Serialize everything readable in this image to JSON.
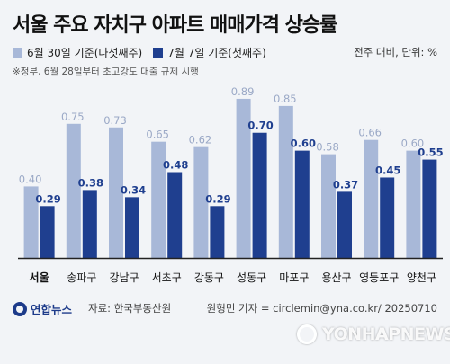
{
  "chart_data": {
    "type": "bar",
    "title": "서울 주요 자치구 아파트 매매가격 상승률",
    "unit_label": "전주 대비, 단위: %",
    "note": "※정부, 6월 28일부터 초고강도 대출 규제 시행",
    "categories": [
      "서울",
      "송파구",
      "강남구",
      "서초구",
      "강동구",
      "성동구",
      "마포구",
      "용산구",
      "영등포구",
      "양천구"
    ],
    "series": [
      {
        "name": "6월 30일 기준(다섯째주)",
        "color": "#a8b8d8",
        "values": [
          0.4,
          0.75,
          0.73,
          0.65,
          0.62,
          0.89,
          0.85,
          0.58,
          0.66,
          0.6
        ]
      },
      {
        "name": "7월 7일 기준(첫째주)",
        "color": "#1f3f8f",
        "values": [
          0.29,
          0.38,
          0.34,
          0.48,
          0.29,
          0.7,
          0.6,
          0.37,
          0.45,
          0.55
        ]
      }
    ],
    "ylim": [
      0,
      0.95
    ],
    "grid": false,
    "legend_position": "top-left"
  },
  "footer": {
    "logo_text": "연합뉴스",
    "source": "자료: 한국부동산원",
    "credit": "원형민 기자 = circlemin@yna.co.kr/ 20250710",
    "watermark": "YONHAPNEWS"
  }
}
